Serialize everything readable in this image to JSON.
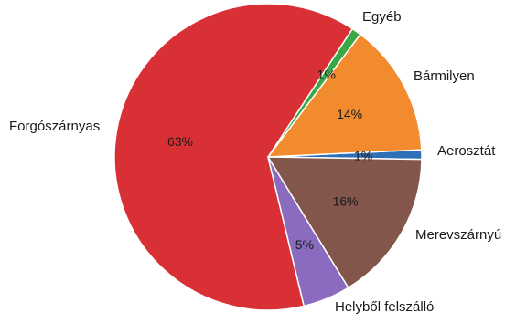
{
  "chart_data": {
    "type": "pie",
    "title": "",
    "unit": "%",
    "slices": [
      {
        "label": "Aerosztát",
        "value": 1,
        "pct_text": "1%",
        "color": "#2e6fb5"
      },
      {
        "label": "Bármilyen",
        "value": 14,
        "pct_text": "14%",
        "color": "#f28a2e"
      },
      {
        "label": "Egyéb",
        "value": 1,
        "pct_text": "1%",
        "color": "#3aa845"
      },
      {
        "label": "Forgószárnyas",
        "value": 63,
        "pct_text": "63%",
        "color": "#d93035"
      },
      {
        "label": "Helyből felszálló",
        "value": 5,
        "pct_text": "5%",
        "color": "#8a6bbf"
      },
      {
        "label": "Merevszárnyú",
        "value": 16,
        "pct_text": "16%",
        "color": "#82564a"
      }
    ]
  }
}
